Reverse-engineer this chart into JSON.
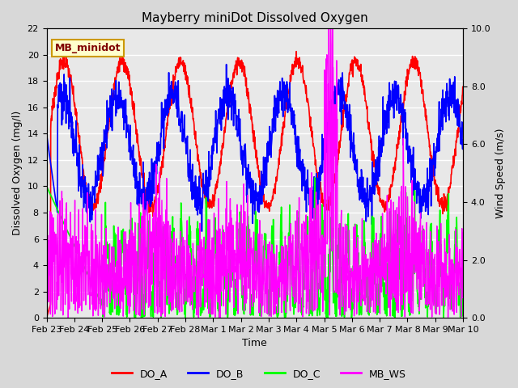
{
  "title": "Mayberry miniDot Dissolved Oxygen",
  "xlabel": "Time",
  "ylabel_left": "Dissolved Oxygen (mg/l)",
  "ylabel_right": "Wind Speed (m/s)",
  "legend_label": "MB_minidot",
  "series_labels": [
    "DO_A",
    "DO_B",
    "DO_C",
    "MB_WS"
  ],
  "series_colors": [
    "red",
    "blue",
    "lime",
    "magenta"
  ],
  "x_tick_labels": [
    "Feb 23",
    "Feb 24",
    "Feb 25",
    "Feb 26",
    "Feb 27",
    "Feb 28",
    "Mar 1",
    "Mar 2",
    "Mar 3",
    "Mar 4",
    "Mar 5",
    "Mar 6",
    "Mar 7",
    "Mar 8",
    "Mar 9",
    "Mar 10"
  ],
  "ylim_left": [
    0,
    22
  ],
  "ylim_right": [
    0.0,
    10.0
  ],
  "yticks_left": [
    0,
    2,
    4,
    6,
    8,
    10,
    12,
    14,
    16,
    18,
    20,
    22
  ],
  "yticks_right": [
    0.0,
    2.0,
    4.0,
    6.0,
    8.0,
    10.0
  ],
  "ytick_labels_right": [
    "0.0",
    "2.0",
    "4.0",
    "6.0",
    "8.0",
    "10.0"
  ],
  "bg_color": "#d8d8d8",
  "plot_bg_color": "#e8e8e8",
  "legend_box_color": "#ffffcc",
  "legend_box_edge": "#cc9900",
  "title_fontsize": 11,
  "axis_label_fontsize": 9,
  "tick_label_fontsize": 8,
  "legend_fontsize": 9,
  "linewidth_do": 1.2,
  "linewidth_ws": 1.0,
  "n_points": 1500
}
